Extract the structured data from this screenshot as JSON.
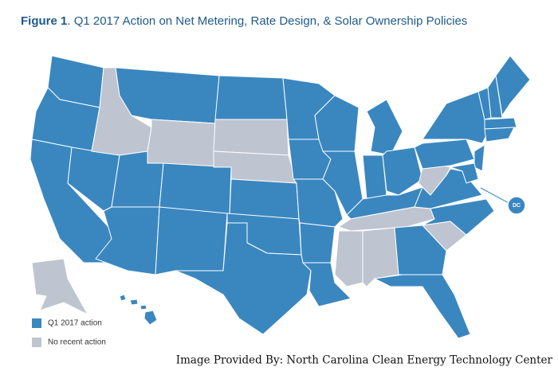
{
  "title": {
    "label": "Figure 1",
    "text": ". Q1 2017 Action on Net Metering, Rate Design, & Solar Ownership Policies"
  },
  "legend": [
    {
      "name": "Q1 2017 action",
      "color": "#3a87c0"
    },
    {
      "name": "No recent action",
      "color": "#bec5d0"
    }
  ],
  "dc_label": "DC",
  "credit": "Image Provided By: North Carolina Clean Energy Technology Center"
}
